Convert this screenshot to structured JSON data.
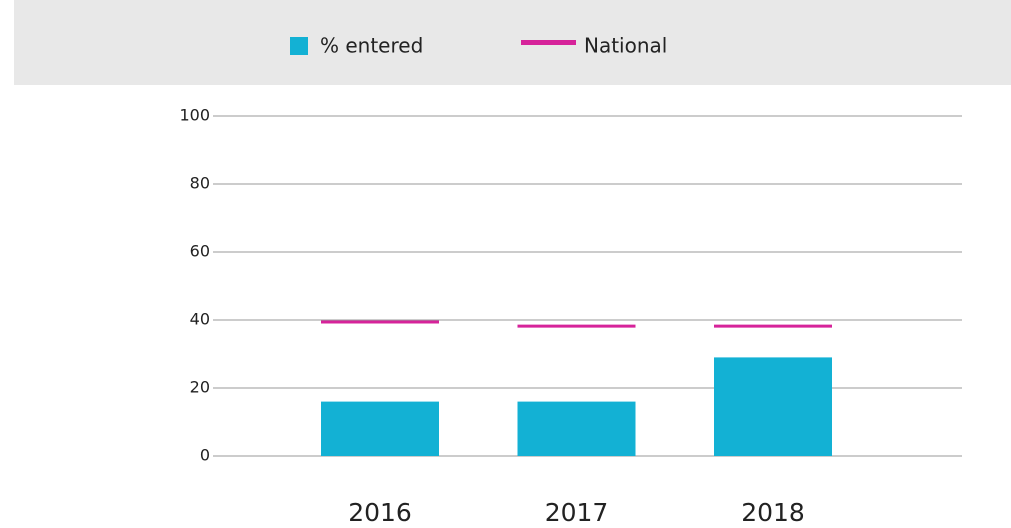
{
  "chart_data": {
    "type": "bar",
    "categories": [
      "2016",
      "2017",
      "2018"
    ],
    "series": [
      {
        "name": "% entered",
        "color": "#13b1d4",
        "type": "bar",
        "values": [
          16,
          16,
          29
        ]
      },
      {
        "name": "National",
        "color": "#d6239a",
        "type": "marker",
        "values": [
          39.4,
          38.2,
          38.2
        ]
      }
    ],
    "ylim": [
      0,
      100
    ],
    "yticks": [
      0,
      20,
      40,
      60,
      80,
      100
    ],
    "grid": true,
    "legend": "top"
  }
}
